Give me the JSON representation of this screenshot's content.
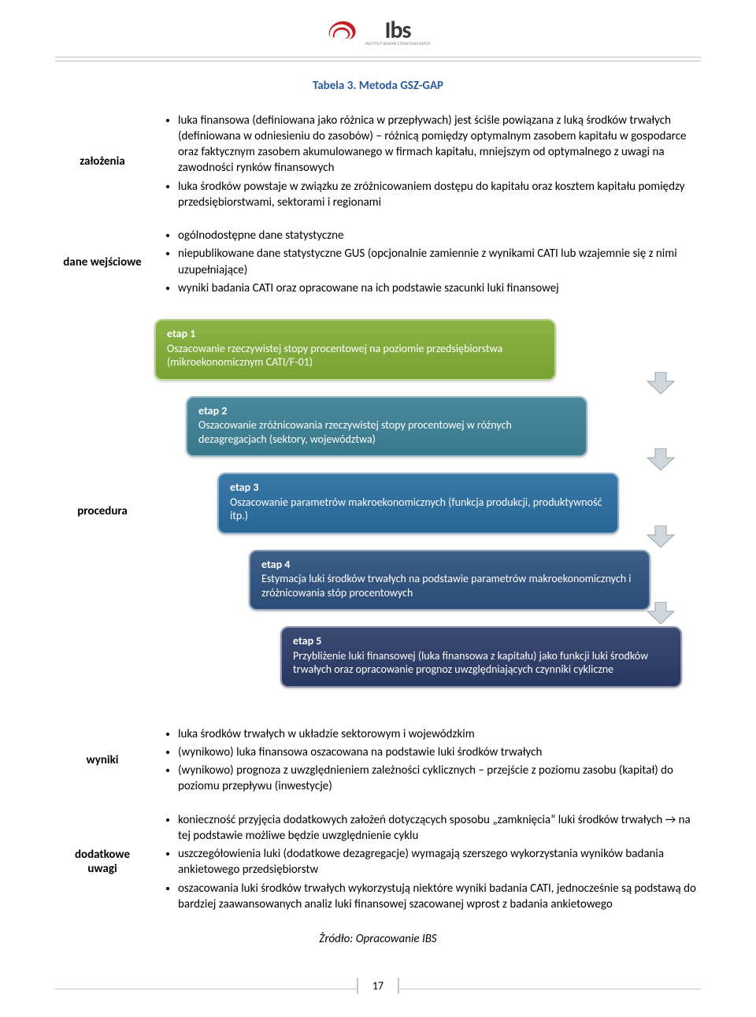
{
  "logo": {
    "brand": "Ibs",
    "sub": "INSTYTUT BADAŃ STRUKTURALNYCH",
    "swirl_color": "#c62027"
  },
  "title": "Tabela 3. Metoda GSZ-GAP",
  "title_color": "#2a5a9c",
  "rows": {
    "zalozenia": {
      "label": "założenia",
      "items": [
        "luka finansowa (definiowana jako różnica w przepływach) jest ściśle powiązana z luką środków trwałych (definiowana w odniesieniu do zasobów) – różnicą pomiędzy optymalnym zasobem kapitału w gospodarce oraz faktycznym zasobem akumulowanego w firmach kapitału, mniejszym od optymalnego z uwagi na zawodności rynków finansowych",
        "luka środków powstaje w związku ze zróżnicowaniem dostępu do kapitału oraz kosztem kapitału pomiędzy przedsiębiorstwami, sektorami i regionami"
      ]
    },
    "dane": {
      "label": "dane wejściowe",
      "items": [
        "ogólnodostępne dane statystyczne",
        "niepublikowane dane statystyczne GUS (opcjonalnie zamiennie z wynikami CATI lub wzajemnie się z nimi uzupełniające)",
        "wyniki badania CATI oraz opracowane na ich podstawie szacunki luki finansowej"
      ]
    },
    "procedura": {
      "label": "procedura"
    },
    "wyniki": {
      "label": "wyniki",
      "items": [
        "luka środków trwałych w układzie sektorowym i wojewódzkim",
        "(wynikowo) luka finansowa oszacowana na podstawie luki środków trwałych",
        "(wynikowo) prognoza z uwzględnieniem zależności cyklicznych – przejście z poziomu zasobu (kapitał) do poziomu przepływu (inwestycje)"
      ]
    },
    "uwagi": {
      "label": "dodatkowe uwagi",
      "items": [
        "konieczność przyjęcia dodatkowych założeń dotyczących  sposobu „zamknięcia” luki środków trwałych → na tej podstawie możliwe będzie uwzględnienie cyklu",
        "uszczegółowienia luki (dodatkowe dezagregacje) wymagają szerszego wykorzystania wyników badania ankietowego przedsiębiorstw",
        "oszacowania luki środków trwałych wykorzystują niektóre wyniki badania CATI, jednocześnie są podstawą do bardziej zaawansowanych analiz luki finansowej szacowanej wprost z badania ankietowego"
      ]
    }
  },
  "steps": [
    {
      "title": "etap 1",
      "body": "Oszacowanie rzeczywistej stopy procentowej na poziomie przedsiębiorstwa (mikroekonomicznym CATI/F-01)",
      "bg": "#8ab446",
      "indent": 0
    },
    {
      "title": "etap 2",
      "body": "Oszacowanie zróżnicowania rzeczywistej stopy procentowej w różnych dezagregacjach (sektory, województwa)",
      "bg": "#4a8a9c",
      "indent": 40
    },
    {
      "title": "etap 3",
      "body": "Oszacowanie parametrów makroekonomicznych (funkcja produkcji, produktywność itp.)",
      "bg": "#3a78a8",
      "indent": 80
    },
    {
      "title": "etap 4",
      "body": "Estymacja luki środków trwałych na podstawie parametrów makroekonomicznych i zróżnicowania stóp procentowych",
      "bg": "#3e5e8a",
      "indent": 120
    },
    {
      "title": "etap 5",
      "body": "Przybliżenie luki finansowej (luka finansowa z kapitału) jako funkcji luki środków trwałych oraz opracowanie prognoz uwzględniających czynniki cykliczne",
      "bg": "#3a4a72",
      "indent": 160
    }
  ],
  "arrow_color": "#cfd6dc",
  "source": "Źródło: Opracowanie IBS",
  "page_number": "17"
}
